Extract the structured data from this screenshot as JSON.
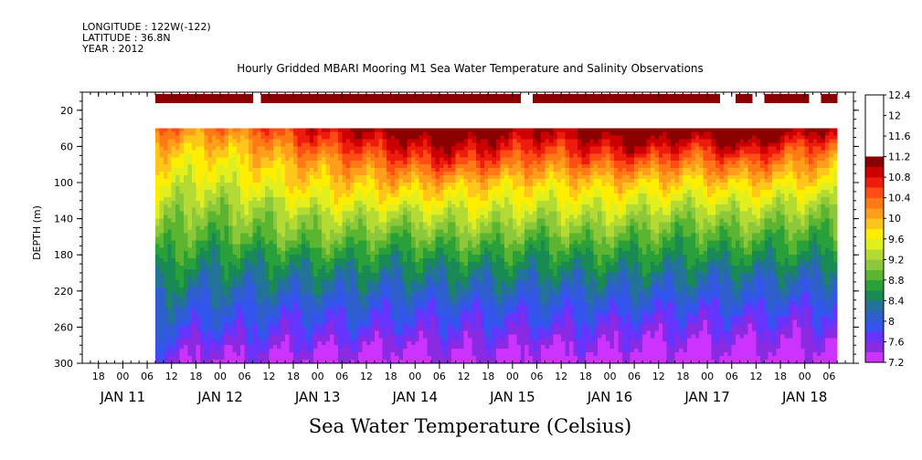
{
  "header": {
    "longitude": "LONGITUDE : 122W(-122)",
    "latitude": "LATITUDE : 36.8N",
    "year": "YEAR : 2012"
  },
  "colors": {
    "scale": [
      "#cc33ff",
      "#8a2be2",
      "#6633ff",
      "#3355ee",
      "#2f5fcc",
      "#22729a",
      "#1a8a55",
      "#2aa03a",
      "#5cb531",
      "#8cc83a",
      "#b4db33",
      "#e1ef1f",
      "#ffee00",
      "#ffc61a",
      "#ff9e1a",
      "#ff7a14",
      "#ff4d14",
      "#ee1c0c",
      "#cc0000",
      "#8b0000"
    ]
  },
  "chart_data": {
    "type": "heatmap",
    "title": "Hourly Gridded MBARI Mooring M1 Sea Water Temperature and Salinity Observations",
    "xlabel": "",
    "ylabel": "DEPTH (m)",
    "caption": "Sea Water Temperature (Celsius)",
    "ylim": [
      300,
      0
    ],
    "y_ticks": [
      "20",
      "60",
      "100",
      "140",
      "180",
      "220",
      "260",
      "300"
    ],
    "x_tick_labels": [
      "12",
      "18",
      "00",
      "06",
      "12",
      "18",
      "00",
      "06",
      "12",
      "18",
      "00",
      "06",
      "12",
      "18",
      "00",
      "06",
      "12",
      "18",
      "00",
      "06",
      "12",
      "18",
      "00",
      "06",
      "12",
      "18",
      "00",
      "06",
      "12",
      "18",
      "00",
      "06"
    ],
    "day_labels": [
      "JAN 11",
      "JAN 12",
      "JAN 13",
      "JAN 14",
      "JAN 15",
      "JAN 16",
      "JAN 17",
      "JAN 18"
    ],
    "colorbar": {
      "labels": [
        "12.4",
        "12",
        "11.6",
        "11.2",
        "10.8",
        "10.4",
        "10",
        "9.6",
        "9.2",
        "8.8",
        "8.4",
        "8",
        "7.6",
        "7.2"
      ],
      "min": 7.2,
      "max": 12.4,
      "step": 0.2
    },
    "start_hour": 8,
    "end_hour": 176,
    "surface_band": {
      "depth": [
        2,
        12
      ],
      "gaps": [
        [
          32,
          34
        ],
        [
          98,
          101
        ],
        [
          147,
          151
        ],
        [
          155,
          158
        ],
        [
          169,
          172
        ]
      ],
      "values": [
        11.6,
        11.6,
        11.8,
        12.0,
        12.4,
        12.6,
        12.4,
        12.2,
        12.0,
        11.8,
        12.0,
        12.0,
        11.8,
        11.8
      ]
    },
    "profile_start_depth": 40,
    "depths": [
      40,
      60,
      80,
      100,
      120,
      140,
      160,
      180,
      200,
      220,
      240,
      260,
      280,
      300
    ],
    "sample_hours": [
      8,
      20,
      32,
      44,
      56,
      68,
      80,
      92,
      104,
      116,
      128,
      140,
      152,
      164,
      176
    ],
    "values": [
      [
        10.4,
        10.2,
        10.4,
        10.8,
        11.0,
        11.2,
        11.4,
        11.2,
        11.0,
        11.2,
        11.4,
        11.2,
        11.6,
        11.2,
        11.0
      ],
      [
        10.0,
        9.9,
        10.0,
        10.4,
        10.6,
        10.8,
        11.0,
        10.8,
        10.6,
        10.8,
        11.0,
        10.6,
        11.0,
        10.6,
        10.4
      ],
      [
        9.8,
        9.6,
        9.8,
        10.0,
        10.2,
        10.4,
        10.6,
        10.4,
        10.2,
        10.4,
        10.4,
        10.2,
        10.4,
        10.2,
        10.0
      ],
      [
        9.6,
        9.4,
        9.6,
        9.8,
        9.9,
        10.0,
        10.0,
        9.9,
        9.8,
        9.9,
        9.9,
        9.8,
        9.9,
        9.8,
        9.7
      ],
      [
        9.4,
        9.2,
        9.3,
        9.5,
        9.6,
        9.6,
        9.6,
        9.6,
        9.5,
        9.6,
        9.5,
        9.4,
        9.5,
        9.4,
        9.3
      ],
      [
        9.2,
        9.0,
        9.1,
        9.2,
        9.3,
        9.2,
        9.3,
        9.3,
        9.2,
        9.3,
        9.2,
        9.1,
        9.2,
        9.1,
        9.0
      ],
      [
        9.0,
        8.8,
        8.9,
        9.0,
        9.0,
        8.9,
        9.0,
        9.0,
        8.9,
        9.0,
        8.9,
        8.8,
        8.9,
        8.8,
        8.8
      ],
      [
        8.8,
        8.6,
        8.6,
        8.7,
        8.7,
        8.6,
        8.7,
        8.7,
        8.6,
        8.7,
        8.6,
        8.6,
        8.6,
        8.6,
        8.5
      ],
      [
        8.6,
        8.4,
        8.4,
        8.4,
        8.4,
        8.4,
        8.4,
        8.4,
        8.4,
        8.4,
        8.4,
        8.3,
        8.3,
        8.3,
        8.3
      ],
      [
        8.4,
        8.2,
        8.2,
        8.2,
        8.2,
        8.1,
        8.2,
        8.2,
        8.1,
        8.2,
        8.1,
        8.1,
        8.1,
        8.1,
        8.0
      ],
      [
        8.2,
        8.0,
        8.0,
        7.9,
        8.0,
        7.9,
        7.9,
        7.9,
        7.9,
        7.9,
        7.9,
        7.8,
        7.9,
        7.8,
        7.8
      ],
      [
        8.0,
        7.8,
        7.8,
        7.7,
        7.8,
        7.7,
        7.7,
        7.7,
        7.7,
        7.7,
        7.6,
        7.6,
        7.6,
        7.6,
        7.6
      ],
      [
        7.8,
        7.5,
        7.6,
        7.5,
        7.5,
        7.4,
        7.5,
        7.5,
        7.4,
        7.5,
        7.4,
        7.4,
        7.4,
        7.4,
        7.4
      ],
      [
        7.6,
        7.3,
        7.4,
        7.3,
        7.3,
        7.2,
        7.3,
        7.3,
        7.2,
        7.3,
        7.2,
        7.2,
        7.2,
        7.2,
        7.2
      ]
    ]
  }
}
